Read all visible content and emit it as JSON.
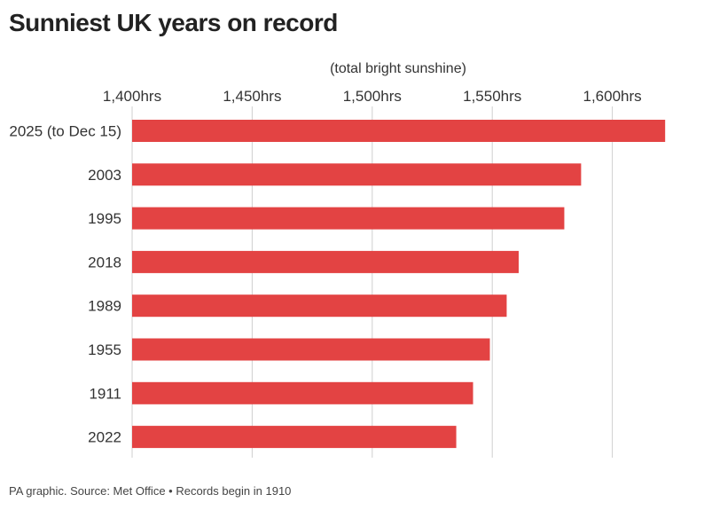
{
  "chart_data": {
    "type": "bar",
    "orientation": "horizontal",
    "title": "Sunniest UK years on record",
    "axis_subtitle": "(total bright sunshine)",
    "xlabel": "(total bright sunshine)",
    "ylabel": "",
    "xlim": [
      1400,
      1621
    ],
    "tick_values": [
      1400,
      1450,
      1500,
      1550,
      1600
    ],
    "tick_labels": [
      "1,400hrs",
      "1,450hrs",
      "1,500hrs",
      "1,550hrs",
      "1,600hrs"
    ],
    "categories": [
      "2025 (to Dec 15)",
      "2003",
      "1995",
      "2018",
      "1989",
      "1955",
      "1911",
      "2022"
    ],
    "values": [
      1622,
      1587,
      1580,
      1561,
      1556,
      1549,
      1542,
      1535
    ],
    "grid": true,
    "bar_color": "#e34343",
    "grid_color": "#cfcfcf"
  },
  "footer": {
    "source": "PA graphic. Source: Met Office • Records begin in 1910"
  }
}
